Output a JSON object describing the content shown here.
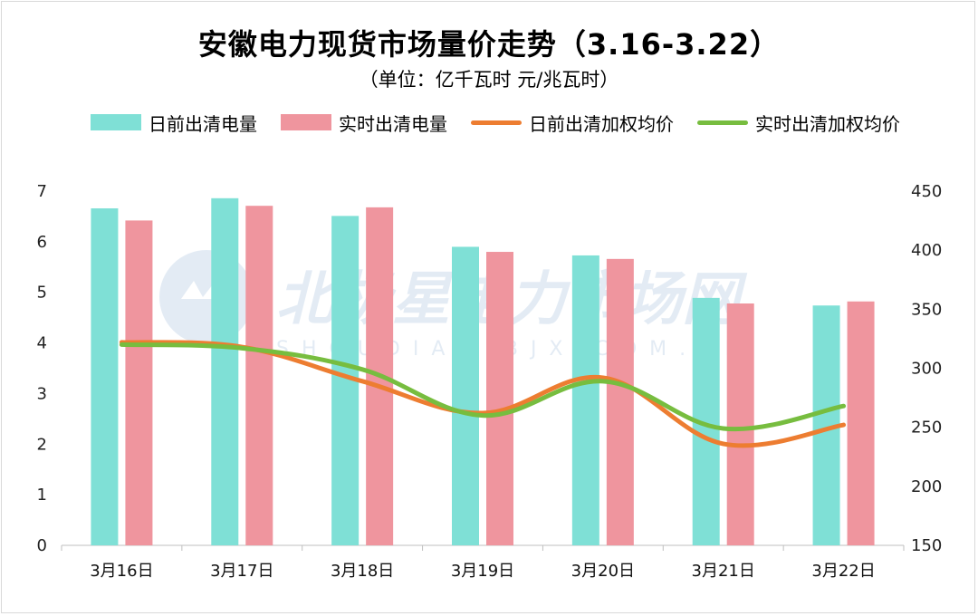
{
  "title": "安徽电力现货市场量价走势（3.16-3.22）",
  "subtitle": "（单位：亿千瓦时 元/兆瓦时）",
  "watermark": {
    "text": "北极星电力市场网",
    "sub": "SHOUDIAN.BJX.COM.CN"
  },
  "colors": {
    "da_volume": "#7fe0d6",
    "rt_volume": "#ef959e",
    "da_price": "#ed7d31",
    "rt_price": "#77bd3f"
  },
  "chart_data": {
    "type": "bar",
    "title": "安徽电力现货市场量价走势（3.16-3.22）",
    "subtitle": "（单位：亿千瓦时 元/兆瓦时）",
    "categories": [
      "3月16日",
      "3月17日",
      "3月18日",
      "3月19日",
      "3月20日",
      "3月21日",
      "3月22日"
    ],
    "y_left": {
      "min": 0,
      "max": 7,
      "ticks": [
        "0",
        "1",
        "2",
        "3",
        "4",
        "5",
        "6",
        "7"
      ]
    },
    "y_right": {
      "min": 150,
      "max": 450,
      "ticks": [
        "150",
        "200",
        "250",
        "300",
        "350",
        "400",
        "450"
      ]
    },
    "series": [
      {
        "name": "日前出清电量",
        "type": "bar",
        "axis": "left",
        "values": [
          6.66,
          6.86,
          6.51,
          5.9,
          5.73,
          4.89,
          4.74
        ]
      },
      {
        "name": "实时出清电量",
        "type": "bar",
        "axis": "left",
        "values": [
          6.42,
          6.71,
          6.68,
          5.8,
          5.66,
          4.78,
          4.82
        ]
      },
      {
        "name": "日前出清加权均价",
        "type": "line",
        "axis": "right",
        "smooth": true,
        "values": [
          322,
          318,
          289,
          262,
          292,
          236,
          252
        ]
      },
      {
        "name": "实时出清加权均价",
        "type": "line",
        "axis": "right",
        "smooth": true,
        "values": [
          320,
          317,
          299,
          260,
          289,
          249,
          268
        ]
      }
    ],
    "legend_position": "top",
    "grid": false
  }
}
